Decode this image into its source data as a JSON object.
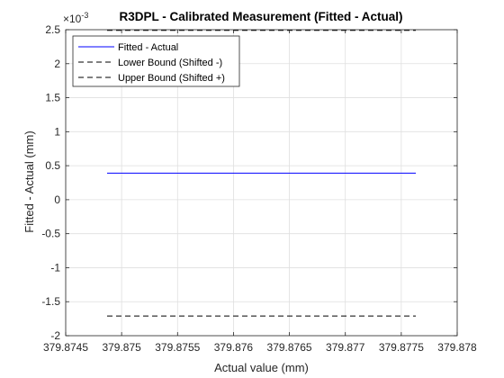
{
  "chart_data": {
    "type": "line",
    "title": "R3DPL - Calibrated Measurement (Fitted - Actual)",
    "xlabel": "Actual value (mm)",
    "ylabel": "Fitted - Actual (mm)",
    "y_exponent_label": "×10",
    "y_exponent_power": "-3",
    "xlim": [
      379.8745,
      379.878
    ],
    "ylim": [
      -0.002,
      0.0025
    ],
    "x_ticks": [
      379.8745,
      379.875,
      379.8755,
      379.876,
      379.8765,
      379.877,
      379.8775,
      379.878
    ],
    "x_tick_labels": [
      "379.8745",
      "379.875",
      "379.8755",
      "379.876",
      "379.8765",
      "379.877",
      "379.8775",
      "379.878"
    ],
    "y_ticks": [
      -0.002,
      -0.0015,
      -0.001,
      -0.0005,
      0,
      0.0005,
      0.001,
      0.0015,
      0.002,
      0.0025
    ],
    "y_tick_labels": [
      "-2",
      "-1.5",
      "-1",
      "-0.5",
      "0",
      "0.5",
      "1",
      "1.5",
      "2",
      "2.5"
    ],
    "grid": true,
    "legend_position": "top-left",
    "series": [
      {
        "name": "Fitted - Actual",
        "color": "#0000ff",
        "dash": "solid",
        "x": [
          379.87487,
          379.87763
        ],
        "y": [
          0.00039,
          0.00039
        ]
      },
      {
        "name": "Lower Bound (Shifted -)",
        "color": "#000000",
        "dash": "dashed",
        "x": [
          379.87487,
          379.87763
        ],
        "y": [
          -0.00171,
          -0.00171
        ]
      },
      {
        "name": "Upper Bound (Shifted +)",
        "color": "#000000",
        "dash": "dashed",
        "x": [
          379.87487,
          379.87763
        ],
        "y": [
          0.00249,
          0.00249
        ]
      }
    ]
  }
}
